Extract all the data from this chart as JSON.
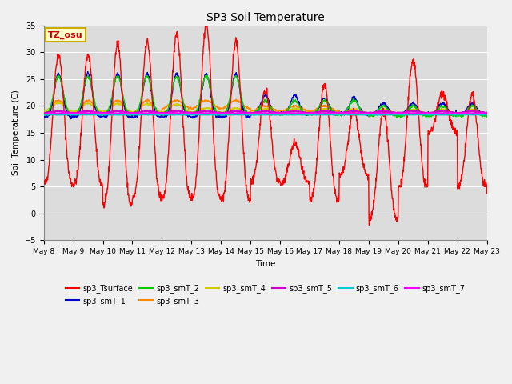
{
  "title": "SP3 Soil Temperature",
  "xlabel": "Time",
  "ylabel": "Soil Temperature (C)",
  "ylim": [
    -5,
    35
  ],
  "yticks": [
    -5,
    0,
    5,
    10,
    15,
    20,
    25,
    30,
    35
  ],
  "plot_bg_color": "#dcdcdc",
  "fig_bg_color": "#f0f0f0",
  "annotation_text": "TZ_osu",
  "annotation_bg": "#ffffcc",
  "annotation_border": "#ccaa00",
  "series_colors": {
    "sp3_Tsurface": "#ff0000",
    "sp3_smT_1": "#0000cc",
    "sp3_smT_2": "#00cc00",
    "sp3_smT_3": "#ff8800",
    "sp3_smT_4": "#cccc00",
    "sp3_smT_5": "#cc00cc",
    "sp3_smT_6": "#00cccc",
    "sp3_smT_7": "#ff00ff"
  }
}
